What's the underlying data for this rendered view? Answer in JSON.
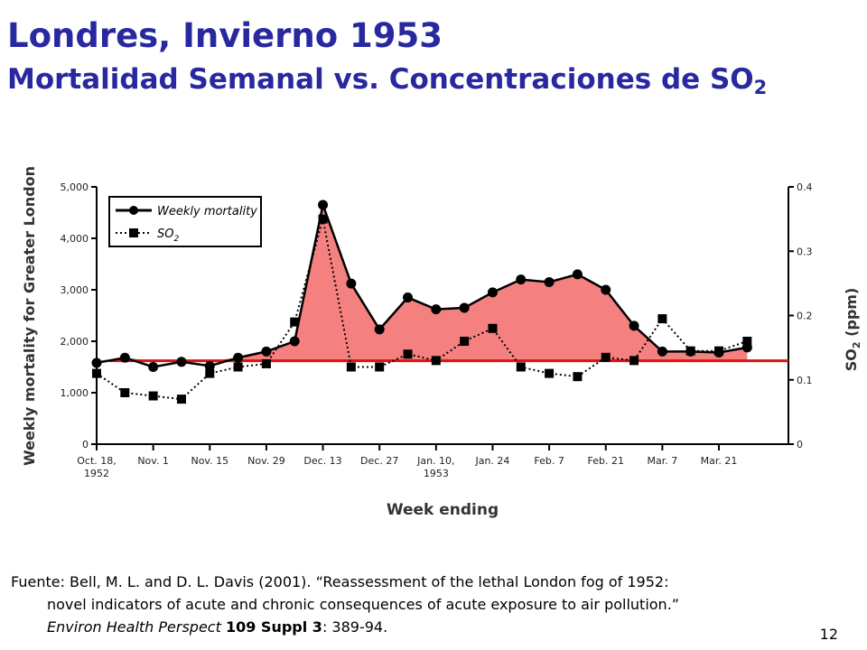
{
  "slide": {
    "title": "Londres, Invierno 1953",
    "subtitle_prefix": "Mortalidad Semanal vs. Concentraciones de SO",
    "subtitle_sub": "2",
    "source_line1": "Fuente: Bell, M. L. and D. L. Davis (2001). “Reassessment of the lethal London fog of 1952:",
    "source_line2": "novel indicators of acute and chronic consequences of acute exposure to air pollution.”",
    "source_journal": "Environ Health Perspect",
    "source_volume": "109 Suppl 3",
    "source_pages": ": 389-94.",
    "page_number": "12"
  },
  "chart_data": {
    "type": "line",
    "xlabel": "Week ending",
    "ylabel_left": "Weekly mortality for Greater London",
    "ylabel_right_prefix": "SO",
    "ylabel_right_sub": "2",
    "ylabel_right_suffix": " (ppm)",
    "x_tick_labels": [
      {
        "week": 0,
        "lines": [
          "Oct. 18,",
          "1952"
        ]
      },
      {
        "week": 2,
        "lines": [
          "Nov. 1"
        ]
      },
      {
        "week": 4,
        "lines": [
          "Nov. 15"
        ]
      },
      {
        "week": 6,
        "lines": [
          "Nov. 29"
        ]
      },
      {
        "week": 8,
        "lines": [
          "Dec. 13"
        ]
      },
      {
        "week": 10,
        "lines": [
          "Dec. 27"
        ]
      },
      {
        "week": 12,
        "lines": [
          "Jan. 10,",
          "1953"
        ]
      },
      {
        "week": 14,
        "lines": [
          "Jan. 24"
        ]
      },
      {
        "week": 16,
        "lines": [
          "Feb. 7"
        ]
      },
      {
        "week": 18,
        "lines": [
          "Feb. 21"
        ]
      },
      {
        "week": 20,
        "lines": [
          "Mar. 7"
        ]
      },
      {
        "week": 22,
        "lines": [
          "Mar. 21"
        ]
      }
    ],
    "ylim_left": [
      0,
      5000
    ],
    "yticks_left": [
      "0",
      "1,000",
      "2,000",
      "3,000",
      "4,000",
      "5,000"
    ],
    "ylim_right": [
      0,
      0.4
    ],
    "yticks_right": [
      "0",
      "0.1",
      "0.2",
      "0.3",
      "0.4"
    ],
    "baseline_mortality": 1620,
    "series": [
      {
        "name": "Weekly mortality",
        "axis": "left",
        "values": [
          1580,
          1680,
          1500,
          1600,
          1520,
          1680,
          1800,
          2000,
          4650,
          3120,
          2230,
          2850,
          2620,
          2650,
          2950,
          3200,
          3150,
          3300,
          3000,
          2300,
          1800,
          1800,
          1780,
          1880
        ]
      },
      {
        "name": "SO2",
        "axis": "right",
        "values": [
          0.11,
          0.08,
          0.075,
          0.07,
          0.11,
          0.12,
          0.125,
          0.19,
          0.35,
          0.12,
          0.12,
          0.14,
          0.13,
          0.16,
          0.18,
          0.12,
          0.11,
          0.105,
          0.135,
          0.13,
          0.195,
          0.145,
          0.145,
          0.16
        ]
      }
    ],
    "legend": {
      "position": "top-left",
      "mortality_label": "Weekly mortality",
      "so2_label_prefix": "SO",
      "so2_label_sub": "2"
    },
    "colors": {
      "excess_fill": "#f58080",
      "baseline": "#e01010",
      "line": "#000000"
    }
  }
}
